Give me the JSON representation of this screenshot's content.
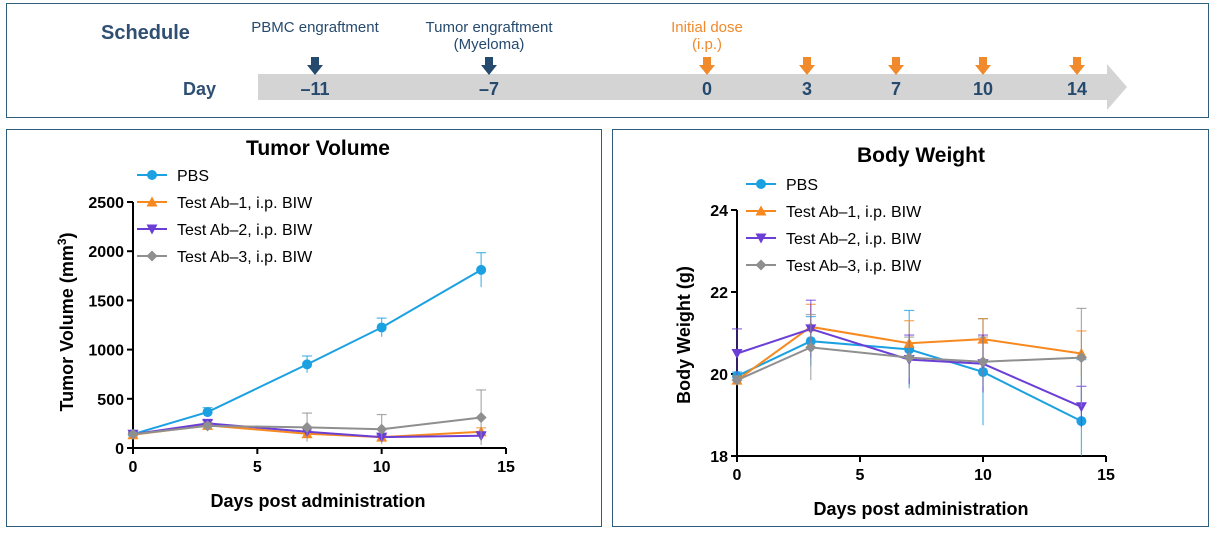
{
  "schedule": {
    "title": "Schedule",
    "day_label": "Day",
    "colors": {
      "dark": "#264a6e",
      "accent": "#f08a2c",
      "arrow": "#d4d4d4"
    },
    "events": [
      {
        "lines": [
          "PBMC engraftment"
        ],
        "day": "-11",
        "color": "dark"
      },
      {
        "lines": [
          "Tumor engraftment",
          "(Myeloma)"
        ],
        "day": "-7",
        "color": "dark"
      },
      {
        "lines": [
          "Initial dose",
          "(i.p.)"
        ],
        "day": "0",
        "color": "accent"
      },
      {
        "lines": [],
        "day": "3",
        "color": "accent"
      },
      {
        "lines": [],
        "day": "7",
        "color": "accent"
      },
      {
        "lines": [],
        "day": "10",
        "color": "accent"
      },
      {
        "lines": [],
        "day": "14",
        "color": "accent"
      }
    ]
  },
  "chart_data": [
    {
      "type": "line",
      "title": "Tumor Volume",
      "xlabel": "Days post administration",
      "ylabel": "Tumor Volume (mm",
      "ylabel_sup": "3",
      "ylabel_end": ")",
      "xlim": [
        0,
        15
      ],
      "ylim": [
        0,
        2500
      ],
      "xticks": [
        0,
        5,
        10,
        15
      ],
      "yticks": [
        0,
        500,
        1000,
        1500,
        2000,
        2500
      ],
      "legend_position": "top-left",
      "x": [
        0,
        3,
        7,
        10,
        14
      ],
      "series": [
        {
          "name": "PBS",
          "color": "#1ba1e2",
          "marker": "circle",
          "values": [
            140,
            365,
            850,
            1225,
            1810
          ],
          "errors": [
            20,
            45,
            85,
            95,
            175
          ]
        },
        {
          "name": "Test Ab–1, i.p. BIW",
          "color": "#f7891f",
          "marker": "triangle-up",
          "values": [
            135,
            230,
            145,
            110,
            165
          ],
          "errors": [
            15,
            25,
            30,
            20,
            40
          ]
        },
        {
          "name": "Test Ab–2, i.p. BIW",
          "color": "#6b3fd6",
          "marker": "triangle-down",
          "values": [
            140,
            250,
            165,
            110,
            125
          ],
          "errors": [
            15,
            30,
            40,
            25,
            30
          ]
        },
        {
          "name": "Test Ab–3, i.p. BIW",
          "color": "#8f8f8f",
          "marker": "diamond",
          "values": [
            140,
            225,
            210,
            190,
            310
          ],
          "errors": [
            15,
            30,
            145,
            150,
            280
          ]
        }
      ]
    },
    {
      "type": "line",
      "title": "Body Weight",
      "xlabel": "Days post administration",
      "ylabel": "Body Weight (g)",
      "xlim": [
        0,
        15
      ],
      "ylim": [
        18,
        24
      ],
      "xticks": [
        0,
        5,
        10,
        15
      ],
      "yticks": [
        18,
        20,
        22,
        24
      ],
      "legend_position": "top-left",
      "x": [
        0,
        3,
        7,
        10,
        14
      ],
      "series": [
        {
          "name": "PBS",
          "color": "#1ba1e2",
          "marker": "circle",
          "values": [
            19.95,
            20.8,
            20.6,
            20.05,
            18.85
          ],
          "errors": [
            0.1,
            0.6,
            0.95,
            1.3,
            1.5
          ]
        },
        {
          "name": "Test Ab–1, i.p. BIW",
          "color": "#f7891f",
          "marker": "triangle-up",
          "values": [
            19.85,
            21.15,
            20.75,
            20.85,
            20.5
          ],
          "errors": [
            0.1,
            0.55,
            0.55,
            0.5,
            0.55
          ]
        },
        {
          "name": "Test Ab–2, i.p. BIW",
          "color": "#6b3fd6",
          "marker": "triangle-down",
          "values": [
            20.5,
            21.1,
            20.35,
            20.25,
            19.2
          ],
          "errors": [
            0.6,
            0.7,
            0.6,
            0.7,
            0.5
          ]
        },
        {
          "name": "Test Ab–3, i.p. BIW",
          "color": "#8f8f8f",
          "marker": "diamond",
          "values": [
            19.85,
            20.65,
            20.4,
            20.3,
            20.4
          ],
          "errors": [
            0.1,
            0.8,
            0.5,
            0.6,
            1.2
          ]
        }
      ]
    }
  ]
}
